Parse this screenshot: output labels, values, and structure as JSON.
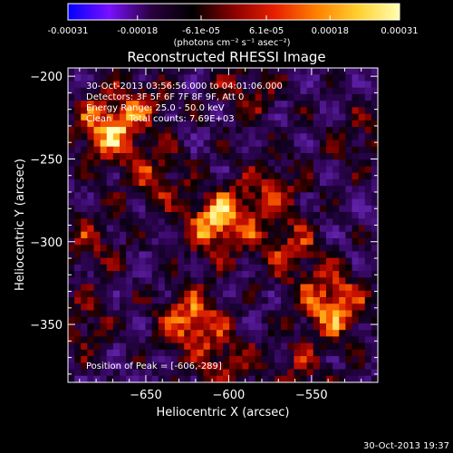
{
  "colorbar": {
    "tick_labels": [
      "-0.00031",
      "-0.00018",
      "-6.1e-05",
      "6.1e-05",
      "0.00018",
      "0.00031"
    ],
    "tick_values": [
      -0.00031,
      -0.00018,
      -6.1e-05,
      6.1e-05,
      0.00018,
      0.00031
    ],
    "range": [
      -0.00031,
      0.00031
    ],
    "units": "(photons cm⁻² s⁻¹ asec⁻²)",
    "stops": [
      "#0000ff",
      "#7a10ff",
      "#2a0040",
      "#000000",
      "#8a0000",
      "#e82000",
      "#ff8000",
      "#ffd030",
      "#ffffb0"
    ]
  },
  "chart_data": {
    "type": "heatmap",
    "title": "Reconstructed RHESSI Image",
    "xlabel": "Heliocentric X (arcsec)",
    "ylabel": "Heliocentric Y (arcsec)",
    "xlim": [
      -697,
      -510
    ],
    "ylim": [
      -385,
      -195
    ],
    "x_ticks": [
      -650,
      -600,
      -550
    ],
    "x_tick_labels": [
      "−650",
      "−600",
      "−550"
    ],
    "y_ticks": [
      -200,
      -250,
      -300,
      -350
    ],
    "y_tick_labels": [
      "−200",
      "−250",
      "−300",
      "−350"
    ],
    "annotations": [
      "30-Oct-2013 03:56:56.000 to 04:01:06.000",
      "Detectors: 3F 5F 6F 7F 8F 9F, Att 0",
      "Energy Range: 25.0 - 50.0 keV",
      "Clean      Total counts: 7.69E+03"
    ],
    "peak_label": "Position of Peak = [-606,-289]",
    "peak": {
      "x": -606,
      "y": -289
    },
    "bright_sources": [
      {
        "x": -673,
        "y": -232,
        "intensity": 0.95
      },
      {
        "x": -645,
        "y": -262,
        "intensity": 0.55
      },
      {
        "x": -606,
        "y": -289,
        "intensity": 1.0
      },
      {
        "x": -575,
        "y": -268,
        "intensity": 0.55
      },
      {
        "x": -563,
        "y": -305,
        "intensity": 0.6
      },
      {
        "x": -537,
        "y": -338,
        "intensity": 0.95
      },
      {
        "x": -623,
        "y": -348,
        "intensity": 0.85
      },
      {
        "x": -684,
        "y": -300,
        "intensity": 0.45
      },
      {
        "x": -688,
        "y": -350,
        "intensity": 0.45
      },
      {
        "x": -600,
        "y": -375,
        "intensity": 0.5
      },
      {
        "x": -520,
        "y": -238,
        "intensity": 0.4
      },
      {
        "x": -590,
        "y": -210,
        "intensity": 0.45
      },
      {
        "x": -650,
        "y": -215,
        "intensity": 0.4
      },
      {
        "x": -555,
        "y": -378,
        "intensity": 0.4
      }
    ]
  },
  "timestamp": "30-Oct-2013 19:37"
}
